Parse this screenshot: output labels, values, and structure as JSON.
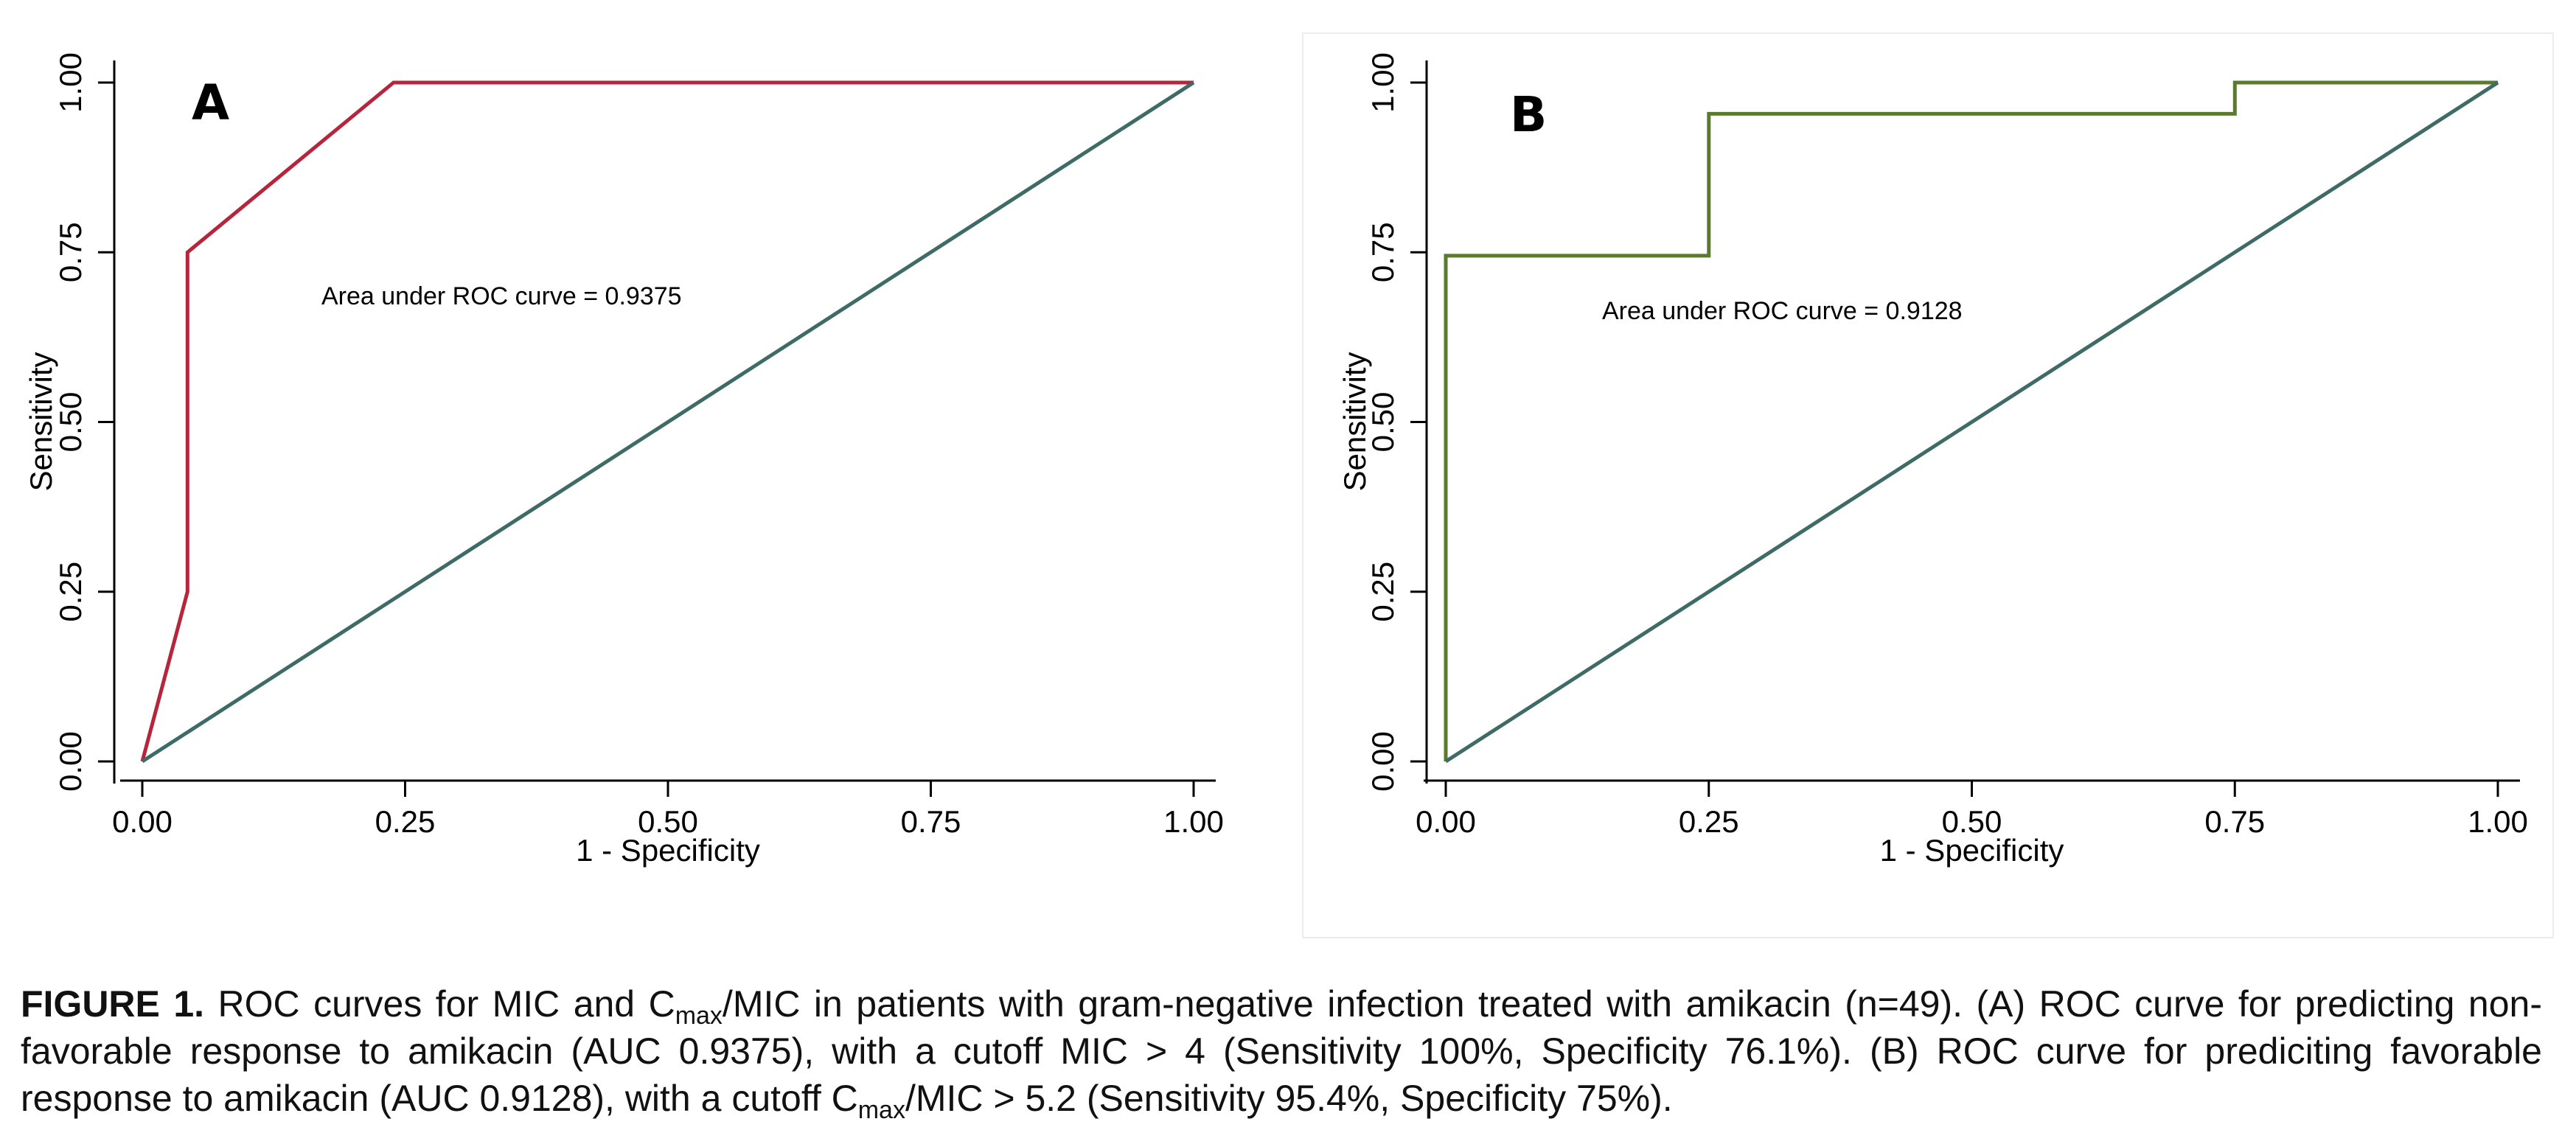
{
  "chart_data": [
    {
      "type": "line",
      "panel_label": "A",
      "xlabel": "1 - Specificity",
      "ylabel": "Sensitivity",
      "xlim": [
        0,
        1
      ],
      "ylim": [
        0,
        1
      ],
      "xticks": [
        "0.00",
        "0.25",
        "0.50",
        "0.75",
        "1.00"
      ],
      "yticks": [
        "0.00",
        "0.25",
        "0.50",
        "0.75",
        "1.00"
      ],
      "annotation": "Area under ROC curve = 0.9375",
      "grid": false,
      "series": [
        {
          "color": "#b5253b",
          "x": [
            0,
            0.043,
            0.043,
            0.239,
            1
          ],
          "y": [
            0,
            0.25,
            0.75,
            1,
            1
          ]
        },
        {
          "color": "#3e6b66",
          "x": [
            0,
            1
          ],
          "y": [
            0,
            1
          ]
        }
      ]
    },
    {
      "type": "line",
      "panel_label": "B",
      "xlabel": "1 - Specificity",
      "ylabel": "Sensitivity",
      "xlim": [
        0,
        1
      ],
      "ylim": [
        0,
        1
      ],
      "xticks": [
        "0.00",
        "0.25",
        "0.50",
        "0.75",
        "1.00"
      ],
      "yticks": [
        "0.00",
        "0.25",
        "0.50",
        "0.75",
        "1.00"
      ],
      "annotation": "Area under ROC curve = 0.9128",
      "grid": false,
      "series": [
        {
          "color": "#5a7a2c",
          "x": [
            0,
            0,
            0.25,
            0.25,
            0.75,
            0.75,
            1
          ],
          "y": [
            0,
            0.745,
            0.745,
            0.954,
            0.954,
            1,
            1
          ]
        },
        {
          "color": "#3e6b66",
          "x": [
            0,
            1
          ],
          "y": [
            0,
            1
          ]
        }
      ]
    }
  ],
  "caption": {
    "label": "FIGURE 1.",
    "part1": " ROC curves for MIC and C",
    "sub1": "max",
    "part2": "/MIC in patients with gram-negative infection treated with amikacin (n=49). (A) ROC curve for predicting non-favorable response to amikacin (AUC 0.9375), with a cutoff MIC > 4 (Sensitivity 100%, Specificity 76.1%). (B) ROC curve for prediciting favorable response to amikacin (AUC 0.9128), with a cutoff C",
    "sub2": "max",
    "part3": "/MIC > 5.2 (Sensitivity 95.4%, Specificity 75%)."
  }
}
